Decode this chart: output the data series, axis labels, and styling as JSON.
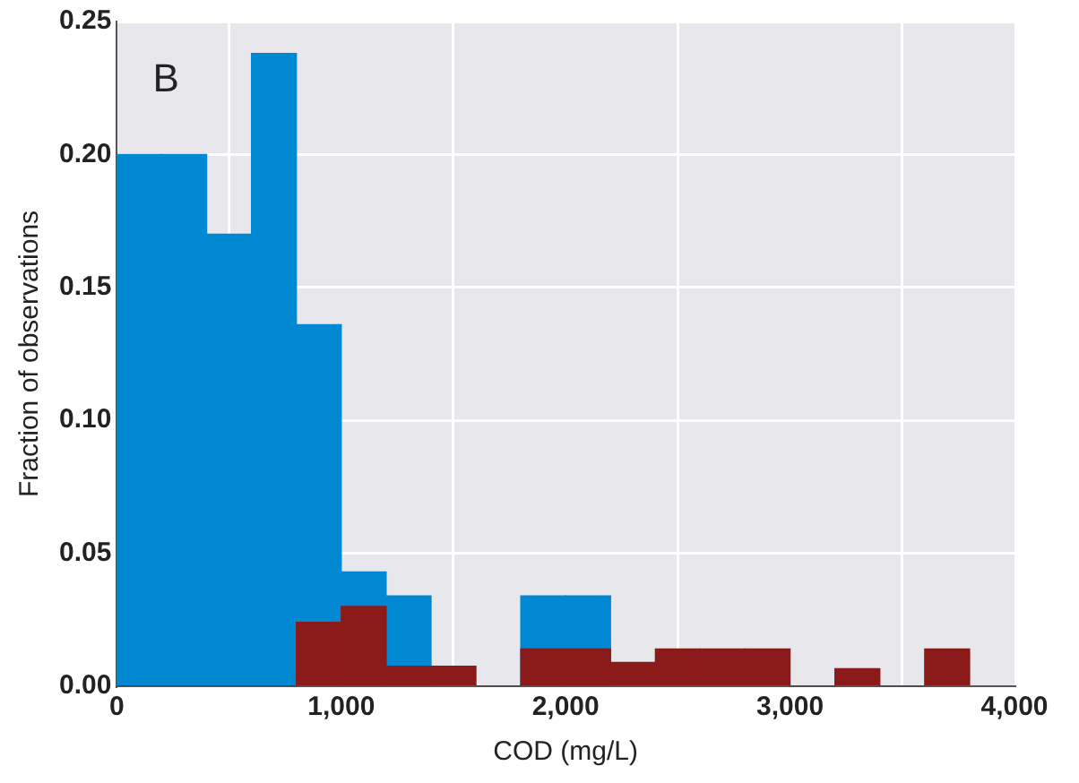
{
  "chart_data": {
    "type": "histogram",
    "xlabel": "COD (mg/L)",
    "ylabel": "Fraction of observations",
    "annotations": [
      "B"
    ],
    "bins": [
      0,
      200,
      400,
      600,
      800,
      1000,
      1200,
      1400,
      1600,
      1800,
      2000,
      2200,
      2400,
      2600,
      2800,
      3000,
      3200,
      3400,
      3600,
      3800
    ],
    "series": [
      {
        "color": "#0089d2",
        "values": [
          0.2,
          0.2,
          0.17,
          0.238,
          0.136,
          0.043,
          0.034,
          0,
          0,
          0.034,
          0.034,
          0,
          0,
          0,
          0,
          0,
          0,
          0,
          0
        ]
      },
      {
        "color": "#8b1a1a",
        "values": [
          0,
          0,
          0,
          0,
          0.024,
          0.03,
          0.0075,
          0.0075,
          0,
          0.014,
          0.014,
          0.009,
          0.014,
          0.014,
          0.014,
          0,
          0.0066,
          0,
          0.014
        ]
      }
    ],
    "xlim": [
      0,
      4000
    ],
    "xticks": [
      0,
      {
        "value": 1000,
        "label": "1,000"
      },
      {
        "value": 2000,
        "label": "2,000"
      },
      {
        "value": 3000,
        "label": "3,000"
      },
      {
        "value": 4000,
        "label": "4,000"
      }
    ],
    "ylim": [
      0,
      0.25
    ],
    "yticks": [
      {
        "value": 0,
        "label": "0.00"
      },
      {
        "value": 0.05,
        "label": "0.05"
      },
      {
        "value": 0.1,
        "label": "0.10"
      },
      {
        "value": 0.15,
        "label": "0.15"
      },
      {
        "value": 0.2,
        "label": "0.20"
      },
      {
        "value": 0.25,
        "label": "0.25"
      }
    ],
    "grid": true,
    "legend": false
  }
}
